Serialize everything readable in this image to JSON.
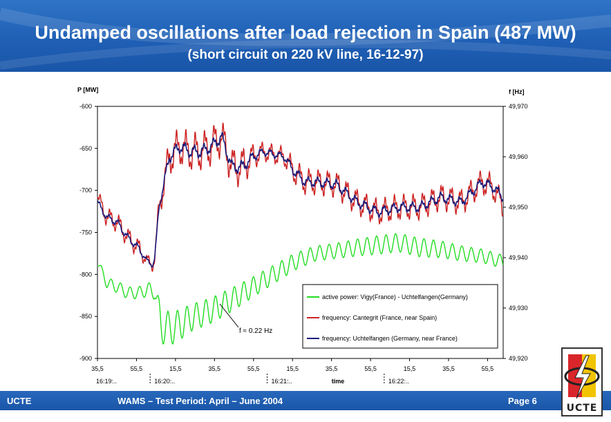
{
  "header": {
    "title": "Undamped oscillations after load rejection in Spain (487 MW)",
    "subtitle": "(short circuit on 220 kV line, 16-12-97)"
  },
  "footer": {
    "left": "UCTE",
    "center": "WAMS – Test Period: April – June 2004",
    "right": "Page 6"
  },
  "logo": {
    "text": "UCTE"
  },
  "chart_data": {
    "type": "line",
    "ylabel_left": "P [MW]",
    "ylabel_right": "f [Hz]",
    "xlabel": "time",
    "ylim_left": [
      -900,
      -600
    ],
    "ylim_right": [
      49.92,
      49.97
    ],
    "yticks_left": [
      "-600",
      "-650",
      "-700",
      "-750",
      "-800",
      "-850",
      "-900"
    ],
    "yticks_left_values": [
      -600,
      -650,
      -700,
      -750,
      -800,
      -850,
      -900
    ],
    "yticks_right": [
      "49,970",
      "49,960",
      "49,950",
      "49,940",
      "49,930",
      "49,920"
    ],
    "yticks_right_values": [
      49.97,
      49.96,
      49.95,
      49.94,
      49.93,
      49.92
    ],
    "xticks": [
      "35,5",
      "55,5",
      "15,5",
      "35,5",
      "55,5",
      "15,5",
      "35,5",
      "55,5",
      "15,5",
      "35,5",
      "55,5"
    ],
    "minute_labels": [
      {
        "label": "16:19:..",
        "after_tick": 0
      },
      {
        "label": "16:20:..",
        "after_tick": 1
      },
      {
        "label": "16:21:..",
        "after_tick": 4
      },
      {
        "label": "16:22:..",
        "after_tick": 7
      }
    ],
    "xlim_seconds": [
      35.5,
      230
    ],
    "grid": false,
    "legend": {
      "placement": "bottom-right",
      "entries": [
        {
          "label": "active power: Vigy(France) - Uchtelfangen(Germany)",
          "color": "#22dd22"
        },
        {
          "label": "frequency: Cantegrit (France, near Spain)",
          "color": "#cc2222"
        },
        {
          "label": "frequency: Uchtelfangen (Germany, near France)",
          "color": "#1a1a7a"
        }
      ]
    },
    "annotation": "f ≈ 0.22 Hz",
    "series": [
      {
        "name": "active power: Vigy(France) - Uchtelfangen(Germany)",
        "axis": "left",
        "color": "#22dd22",
        "x": [
          35.5,
          40,
          45,
          50,
          55,
          60,
          63,
          66,
          70,
          75,
          80,
          90,
          100,
          110,
          120,
          130,
          140,
          150,
          160,
          170,
          180,
          190,
          200,
          210,
          220,
          230
        ],
        "y": [
          -785,
          -810,
          -815,
          -822,
          -822,
          -818,
          -820,
          -860,
          -865,
          -860,
          -852,
          -843,
          -830,
          -815,
          -800,
          -785,
          -775,
          -772,
          -768,
          -765,
          -762,
          -768,
          -770,
          -775,
          -778,
          -785
        ],
        "osc_amp": [
          5,
          6,
          7,
          7,
          7,
          8,
          10,
          22,
          20,
          18,
          16,
          15,
          14,
          12,
          11,
          10,
          9,
          9,
          10,
          11,
          11,
          11,
          10,
          9,
          8,
          8
        ]
      },
      {
        "name": "frequency: Cantegrit (France, near Spain)",
        "axis": "right",
        "color": "#cc2222",
        "x": [
          35.5,
          40,
          45,
          50,
          55,
          59,
          62,
          63,
          65,
          68,
          70,
          75,
          80,
          85,
          90,
          95,
          100,
          105,
          110,
          115,
          120,
          125,
          130,
          135,
          140,
          150,
          160,
          170,
          180,
          190,
          200,
          210,
          220,
          225,
          230
        ],
        "y": [
          49.952,
          49.948,
          49.947,
          49.944,
          49.942,
          49.9395,
          49.9385,
          49.94,
          49.95,
          49.956,
          49.96,
          49.962,
          49.961,
          49.961,
          49.962,
          49.964,
          49.958,
          49.958,
          49.96,
          49.961,
          49.9605,
          49.96,
          49.957,
          49.955,
          49.955,
          49.9545,
          49.951,
          49.949,
          49.95,
          49.95,
          49.952,
          49.951,
          49.955,
          49.954,
          49.95
        ],
        "osc_amp": [
          1.2,
          1.5,
          1.5,
          1.5,
          1.5,
          1,
          1,
          1,
          2,
          2.5,
          3,
          3,
          3,
          3,
          3,
          3,
          3,
          3,
          2,
          1.5,
          1.5,
          1.5,
          2,
          2,
          2,
          2,
          2,
          2,
          2,
          2,
          2,
          2,
          2,
          2,
          2
        ]
      },
      {
        "name": "frequency: Uchtelfangen (Germany, near France)",
        "axis": "right",
        "color": "#1a1a7a",
        "x": [
          35.5,
          40,
          45,
          50,
          55,
          59,
          62,
          63,
          65,
          68,
          70,
          75,
          80,
          85,
          90,
          95,
          100,
          105,
          110,
          115,
          120,
          125,
          130,
          135,
          140,
          150,
          160,
          170,
          180,
          190,
          200,
          210,
          220,
          225,
          230
        ],
        "y": [
          49.951,
          49.948,
          49.947,
          49.944,
          49.942,
          49.9395,
          49.9385,
          49.94,
          49.95,
          49.956,
          49.96,
          49.962,
          49.961,
          49.961,
          49.962,
          49.964,
          49.958,
          49.958,
          49.96,
          49.961,
          49.9605,
          49.96,
          49.957,
          49.955,
          49.955,
          49.9545,
          49.951,
          49.949,
          49.95,
          49.95,
          49.952,
          49.951,
          49.955,
          49.954,
          49.952
        ],
        "osc_amp": [
          0.5,
          0.6,
          0.6,
          0.6,
          0.6,
          0.4,
          0.4,
          0.4,
          0.6,
          0.8,
          1,
          1,
          1,
          1,
          1,
          1,
          1,
          1,
          0.8,
          0.6,
          0.6,
          0.6,
          0.8,
          0.8,
          0.8,
          0.8,
          0.8,
          0.8,
          0.8,
          0.8,
          0.8,
          0.8,
          0.8,
          0.8,
          0.8
        ]
      }
    ]
  }
}
